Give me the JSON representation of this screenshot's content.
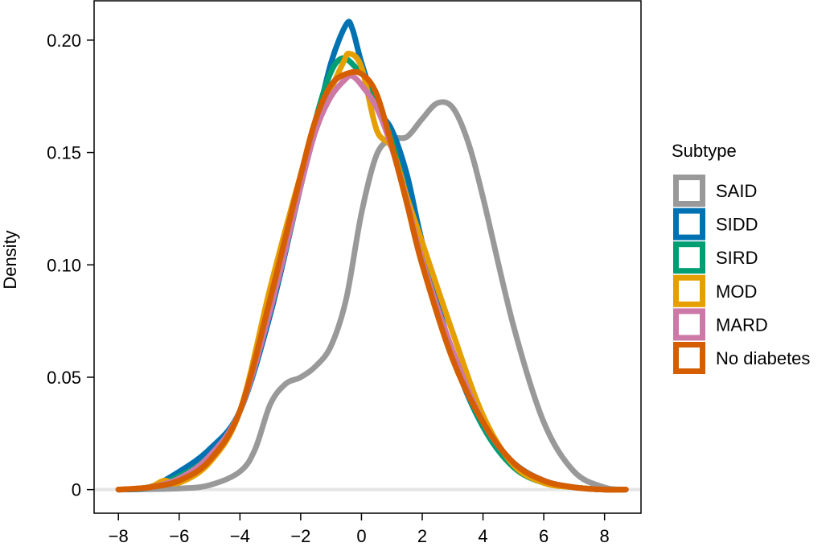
{
  "chart_data": {
    "type": "line",
    "title": "",
    "xlabel": "",
    "ylabel": "Density",
    "xlim": [
      -8.8,
      9.2
    ],
    "ylim": [
      -0.0105,
      0.2175
    ],
    "xticks": [
      -8,
      -6,
      -4,
      -2,
      0,
      2,
      4,
      6,
      8
    ],
    "xtick_labels": [
      "−8",
      "−6",
      "−4",
      "−2",
      "0",
      "2",
      "4",
      "6",
      "8"
    ],
    "yticks": [
      0,
      0.05,
      0.1,
      0.15,
      0.2
    ],
    "ytick_labels": [
      "0",
      "0.05",
      "0.10",
      "0.15",
      "0.20"
    ],
    "grid": false,
    "baseline_y": 0,
    "legend": {
      "title": "Subtype",
      "placement": "right"
    },
    "series": [
      {
        "name": "SAID",
        "color": "#999999",
        "x": [
          -8,
          -6,
          -5,
          -4,
          -3.5,
          -3,
          -2.5,
          -2,
          -1.5,
          -1,
          -0.5,
          0,
          0.5,
          1,
          1.5,
          2,
          2.5,
          3,
          3.5,
          4,
          5,
          6,
          7,
          8,
          8.7
        ],
        "y": [
          0,
          0.0005,
          0.002,
          0.008,
          0.018,
          0.038,
          0.047,
          0.05,
          0.055,
          0.064,
          0.085,
          0.123,
          0.149,
          0.156,
          0.157,
          0.165,
          0.172,
          0.17,
          0.155,
          0.13,
          0.073,
          0.03,
          0.008,
          0.001,
          0
        ]
      },
      {
        "name": "SIDD",
        "color": "#0072B2",
        "x": [
          -8,
          -7,
          -6,
          -5,
          -4,
          -3,
          -2,
          -1.5,
          -1,
          -0.5,
          -0.3,
          0,
          0.5,
          1,
          1.5,
          2,
          3,
          4,
          5,
          6,
          7,
          8,
          8.7
        ],
        "y": [
          0,
          0.001,
          0.008,
          0.018,
          0.035,
          0.078,
          0.135,
          0.162,
          0.19,
          0.207,
          0.205,
          0.19,
          0.17,
          0.16,
          0.14,
          0.11,
          0.06,
          0.028,
          0.012,
          0.004,
          0.001,
          0,
          0
        ]
      },
      {
        "name": "SIRD",
        "color": "#009E73",
        "x": [
          -8,
          -7,
          -6,
          -5,
          -4,
          -3,
          -2,
          -1.5,
          -1,
          -0.6,
          -0.2,
          0.2,
          0.6,
          1,
          1.5,
          2,
          3,
          4,
          5,
          6,
          7,
          8,
          8.7
        ],
        "y": [
          0,
          0.001,
          0.006,
          0.015,
          0.035,
          0.08,
          0.135,
          0.165,
          0.186,
          0.192,
          0.188,
          0.182,
          0.17,
          0.155,
          0.13,
          0.103,
          0.06,
          0.028,
          0.01,
          0.003,
          0.001,
          0,
          0
        ]
      },
      {
        "name": "MOD",
        "color": "#E69F00",
        "x": [
          -8,
          -7,
          -6.5,
          -6,
          -5,
          -4,
          -3,
          -2,
          -1.5,
          -1,
          -0.6,
          -0.4,
          0,
          0.5,
          1,
          1.5,
          2,
          3,
          4,
          5,
          6,
          7,
          8,
          8.7
        ],
        "y": [
          0,
          0.001,
          0.004,
          0.003,
          0.012,
          0.035,
          0.09,
          0.14,
          0.16,
          0.178,
          0.19,
          0.194,
          0.188,
          0.16,
          0.152,
          0.13,
          0.11,
          0.07,
          0.033,
          0.011,
          0.003,
          0.001,
          0,
          0
        ]
      },
      {
        "name": "MARD",
        "color": "#CC79A7",
        "x": [
          -8,
          -7,
          -6,
          -5,
          -4,
          -3,
          -2,
          -1.5,
          -1,
          -0.5,
          -0.3,
          0,
          0.5,
          1,
          1.5,
          2,
          3,
          4,
          5,
          6,
          7,
          8,
          8.7
        ],
        "y": [
          0,
          0.001,
          0.005,
          0.015,
          0.035,
          0.08,
          0.135,
          0.16,
          0.175,
          0.183,
          0.184,
          0.18,
          0.17,
          0.152,
          0.128,
          0.102,
          0.062,
          0.03,
          0.012,
          0.004,
          0.001,
          0,
          0
        ]
      },
      {
        "name": "No diabetes",
        "color": "#D55E00",
        "x": [
          -8,
          -7,
          -6,
          -5,
          -4,
          -3,
          -2,
          -1.5,
          -1,
          -0.5,
          0,
          0.5,
          1,
          1.5,
          2,
          3,
          4,
          5,
          6,
          7,
          8,
          8.7
        ],
        "y": [
          0,
          0.001,
          0.004,
          0.013,
          0.035,
          0.085,
          0.14,
          0.165,
          0.18,
          0.185,
          0.185,
          0.176,
          0.153,
          0.127,
          0.1,
          0.058,
          0.03,
          0.012,
          0.004,
          0.001,
          0,
          0
        ]
      }
    ]
  }
}
